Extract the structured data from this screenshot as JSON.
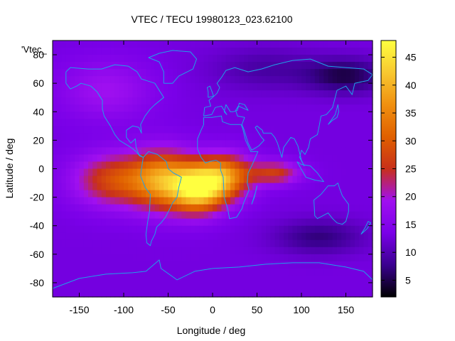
{
  "chart_data": {
    "type": "heatmap",
    "title": "VTEC / TECU 19980123_023.62100",
    "xlabel": "Longitude / deg",
    "ylabel": "Latitude / deg",
    "series_label": "'Vtec_",
    "xlim": [
      -180,
      180
    ],
    "ylim": [
      -90,
      90
    ],
    "xticks": [
      -150,
      -100,
      -50,
      0,
      50,
      100,
      150
    ],
    "yticks": [
      -80,
      -60,
      -40,
      -20,
      0,
      20,
      40,
      60,
      80
    ],
    "colorbar": {
      "range": [
        2,
        48
      ],
      "ticks": [
        5,
        10,
        15,
        20,
        25,
        30,
        35,
        40,
        45
      ],
      "palette": [
        "#000000",
        "#3a0090",
        "#7a00e8",
        "#a010f0",
        "#c8301a",
        "#e06000",
        "#f09010",
        "#f8c830",
        "#ffff40"
      ]
    },
    "grid_resolution_deg": 5,
    "background_level": 13,
    "features": [
      {
        "name": "equatorial-anomaly-west",
        "lon": -110,
        "lat": -8,
        "peak": 27
      },
      {
        "name": "south-america-crest",
        "lon": -55,
        "lat": -8,
        "peak": 37
      },
      {
        "name": "south-atlantic-crest",
        "lon": -15,
        "lat": -14,
        "peak": 43
      },
      {
        "name": "africa-crest",
        "lon": 15,
        "lat": -5,
        "peak": 34
      },
      {
        "name": "indian-ocean-tongue",
        "lon": 70,
        "lat": -3,
        "peak": 27
      },
      {
        "name": "north-pacific-low",
        "lon": 150,
        "lat": 65,
        "peak": 6
      },
      {
        "name": "southern-ocean-low",
        "lon": 120,
        "lat": -48,
        "peak": 7
      }
    ],
    "coastline_color": "#20a0e8"
  }
}
